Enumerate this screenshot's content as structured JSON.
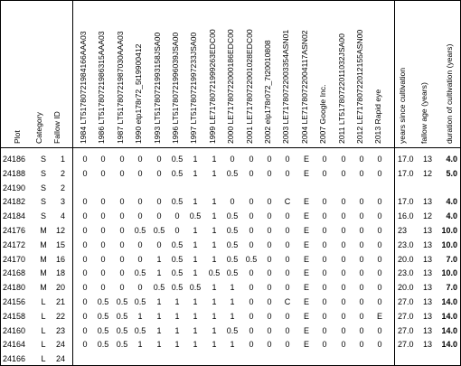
{
  "headers": {
    "plot": "Plot",
    "category": "Category",
    "fallow_id": "Fallow ID",
    "images": [
      "1984 LT51780721984166AAA03",
      "1986 LT51780721986315AAA03",
      "1987 LT51780721987030AAA03",
      "1990 etp178r72_5t19900412",
      "1993 LT51780721993158JSA00",
      "1996 LT51780721996039JSA00",
      "1997 LT51780721997233JSA00",
      "1999 LE71780721999263EDC00",
      "2000 LE71780722000186EDC00",
      "2001 LE71780722001028EDC00",
      "2002 elp178r072_7t20010808",
      "2003 LE71780722003354ASN01",
      "2004 LE71780722004117ASN02",
      "2007 Google Inc.",
      "2011 LT51780722011032JSA00",
      "2012 LE71780722012155ASN00",
      "2013 Rapid eye"
    ],
    "years_since": "years since cultivation",
    "fallow_age": "fallow age (years)",
    "duration": "duration of cultivation (years)"
  },
  "rows": [
    {
      "plot": "24186",
      "cat": "S",
      "fid": "1",
      "v": [
        "0",
        "0",
        "0",
        "0",
        "0",
        "0.5",
        "1",
        "1",
        "0",
        "0",
        "0",
        "0",
        "E",
        "0",
        "0",
        "0",
        "0"
      ],
      "ys": "17.0",
      "fa": "13",
      "dur": "4.0"
    },
    {
      "plot": "24188",
      "cat": "S",
      "fid": "2",
      "v": [
        "0",
        "0",
        "0",
        "0",
        "0",
        "0.5",
        "1",
        "1",
        "0.5",
        "0",
        "0",
        "0",
        "E",
        "0",
        "0",
        "0",
        "0"
      ],
      "ys": "17.0",
      "fa": "12",
      "dur": "5.0"
    },
    {
      "plot": "24190",
      "cat": "S",
      "fid": "2",
      "v": [
        "",
        "",
        "",
        "",
        "",
        "",
        "",
        "",
        "",
        "",
        "",
        "",
        "",
        "",
        "",
        "",
        ""
      ],
      "ys": "",
      "fa": "",
      "dur": ""
    },
    {
      "plot": "24182",
      "cat": "S",
      "fid": "3",
      "v": [
        "0",
        "0",
        "0",
        "0",
        "0",
        "0.5",
        "1",
        "1",
        "0",
        "0",
        "0",
        "C",
        "E",
        "0",
        "0",
        "0",
        "0"
      ],
      "ys": "17.0",
      "fa": "13",
      "dur": "4.0"
    },
    {
      "plot": "24184",
      "cat": "S",
      "fid": "4",
      "v": [
        "0",
        "0",
        "0",
        "0",
        "0",
        "0",
        "0.5",
        "1",
        "0.5",
        "0",
        "0",
        "0",
        "E",
        "0",
        "0",
        "0",
        "0"
      ],
      "ys": "16.0",
      "fa": "12",
      "dur": "4.0"
    },
    {
      "plot": "24176",
      "cat": "M",
      "fid": "12",
      "v": [
        "0",
        "0",
        "0",
        "0.5",
        "0.5",
        "0",
        "1",
        "1",
        "0.5",
        "0",
        "0",
        "0",
        "E",
        "0",
        "0",
        "0",
        "0"
      ],
      "ys": "23",
      "fa": "13",
      "dur": "10.0"
    },
    {
      "plot": "24172",
      "cat": "M",
      "fid": "15",
      "v": [
        "0",
        "0",
        "0",
        "0",
        "0",
        "0.5",
        "1",
        "1",
        "0.5",
        "0",
        "0",
        "0",
        "E",
        "0",
        "0",
        "0",
        "0"
      ],
      "ys": "23.0",
      "fa": "13",
      "dur": "10.0"
    },
    {
      "plot": "24170",
      "cat": "M",
      "fid": "16",
      "v": [
        "0",
        "0",
        "0",
        "0",
        "1",
        "0.5",
        "1",
        "1",
        "0.5",
        "0.5",
        "0",
        "0",
        "E",
        "0",
        "0",
        "0",
        "0"
      ],
      "ys": "20.0",
      "fa": "13",
      "dur": "7.0"
    },
    {
      "plot": "24168",
      "cat": "M",
      "fid": "18",
      "v": [
        "0",
        "0",
        "0",
        "0.5",
        "1",
        "0.5",
        "1",
        "0.5",
        "0.5",
        "0",
        "0",
        "0",
        "E",
        "0",
        "0",
        "0",
        "0"
      ],
      "ys": "23.0",
      "fa": "13",
      "dur": "10.0"
    },
    {
      "plot": "24180",
      "cat": "M",
      "fid": "20",
      "v": [
        "0",
        "0",
        "0",
        "0",
        "0.5",
        "0.5",
        "0.5",
        "1",
        "1",
        "0",
        "0",
        "0",
        "E",
        "0",
        "0",
        "0",
        "0"
      ],
      "ys": "20.0",
      "fa": "13",
      "dur": "7.0"
    },
    {
      "plot": "24156",
      "cat": "L",
      "fid": "21",
      "v": [
        "0",
        "0.5",
        "0.5",
        "0.5",
        "1",
        "1",
        "1",
        "1",
        "1",
        "0",
        "0",
        "C",
        "E",
        "0",
        "0",
        "0",
        "0"
      ],
      "ys": "27.0",
      "fa": "13",
      "dur": "14.0"
    },
    {
      "plot": "24158",
      "cat": "L",
      "fid": "22",
      "v": [
        "0",
        "0.5",
        "0.5",
        "1",
        "1",
        "1",
        "1",
        "1",
        "1",
        "0",
        "0",
        "0",
        "E",
        "0",
        "0",
        "0",
        "E"
      ],
      "ys": "27.0",
      "fa": "13",
      "dur": "14.0"
    },
    {
      "plot": "24160",
      "cat": "L",
      "fid": "23",
      "v": [
        "0",
        "0.5",
        "0.5",
        "0.5",
        "1",
        "1",
        "1",
        "1",
        "0.5",
        "0",
        "0",
        "0",
        "E",
        "0",
        "0",
        "0",
        "0"
      ],
      "ys": "27.0",
      "fa": "13",
      "dur": "14.0"
    },
    {
      "plot": "24164",
      "cat": "L",
      "fid": "24",
      "v": [
        "0",
        "0.5",
        "0.5",
        "1",
        "1",
        "1",
        "1",
        "1",
        "1",
        "0",
        "0",
        "0",
        "E",
        "0",
        "0",
        "0",
        "0"
      ],
      "ys": "27.0",
      "fa": "13",
      "dur": "14.0"
    },
    {
      "plot": "24166",
      "cat": "L",
      "fid": "24",
      "v": [
        "",
        "",
        "",
        "",
        "",
        "",
        "",
        "",
        "",
        "",
        "",
        "",
        "",
        "",
        "",
        "",
        ""
      ],
      "ys": "",
      "fa": "",
      "dur": ""
    }
  ]
}
